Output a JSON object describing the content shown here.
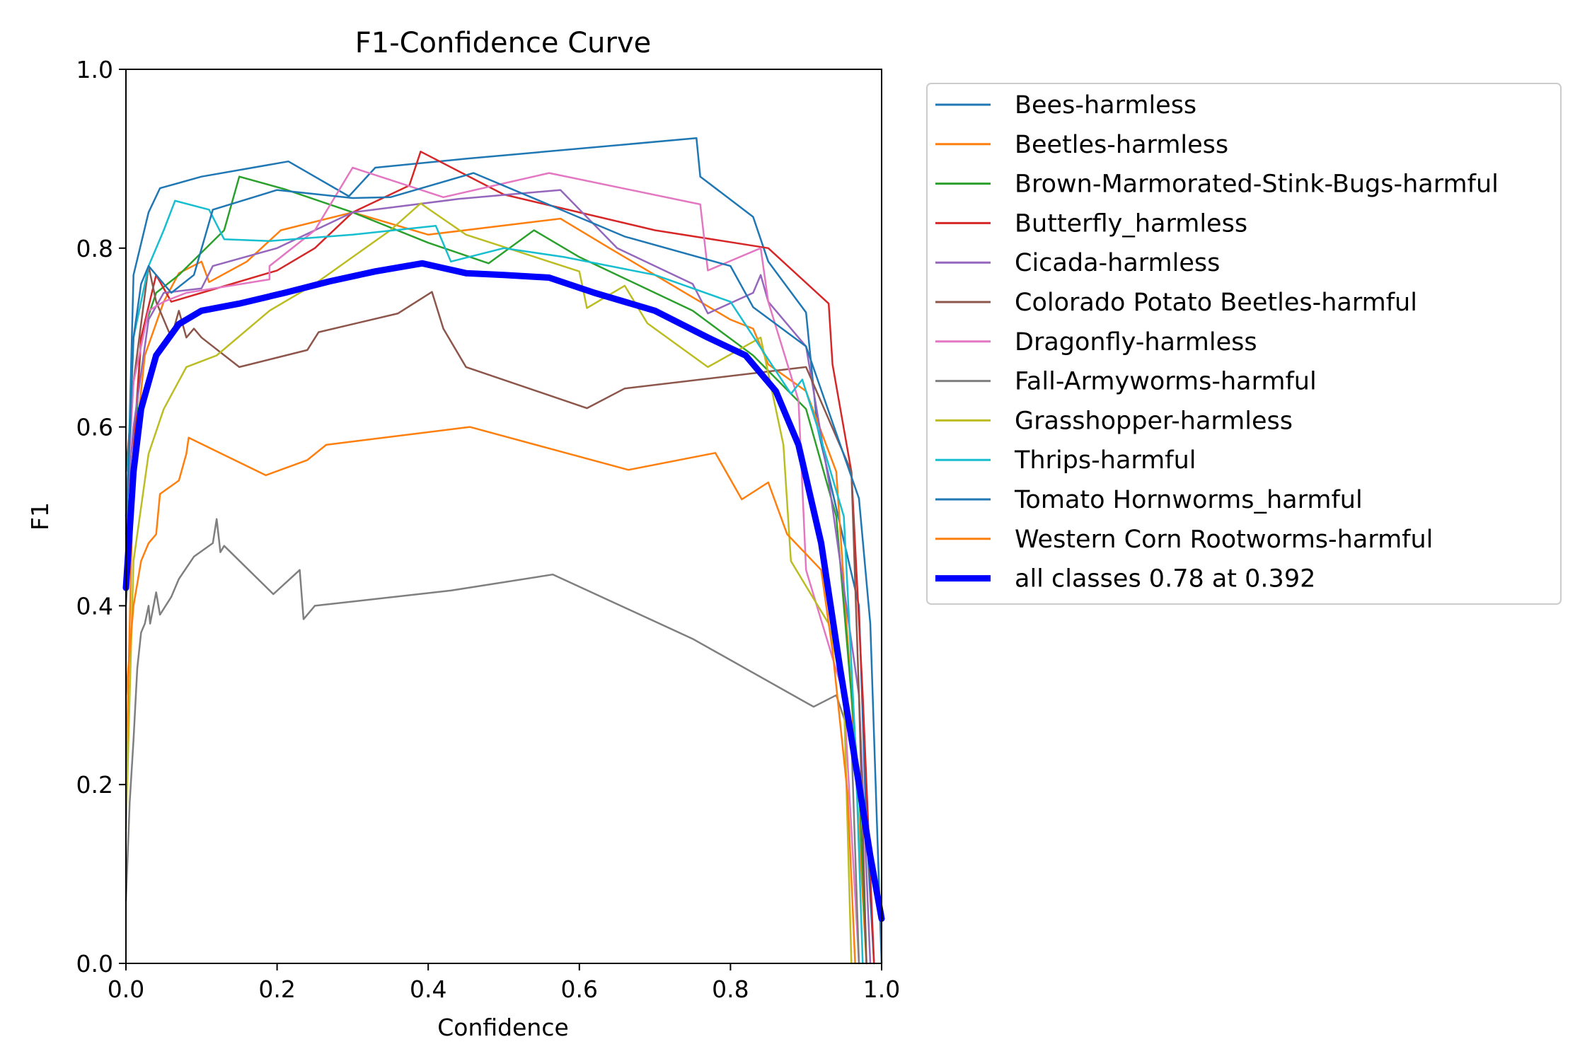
{
  "chart_data": {
    "type": "line",
    "title": "F1-Confidence Curve",
    "xlabel": "Confidence",
    "ylabel": "F1",
    "xlim": [
      0.0,
      1.0
    ],
    "ylim": [
      0.0,
      1.0
    ],
    "xticks": [
      "0.0",
      "0.2",
      "0.4",
      "0.6",
      "0.8",
      "1.0"
    ],
    "yticks": [
      "0.0",
      "0.2",
      "0.4",
      "0.6",
      "0.8",
      "1.0"
    ],
    "grid": false,
    "legend_position": "outside-right",
    "series": [
      {
        "name": "Bees-harmless",
        "color": "#1f77b4",
        "width": 2.5,
        "points": [
          [
            0.0,
            0.45
          ],
          [
            0.01,
            0.77
          ],
          [
            0.03,
            0.84
          ],
          [
            0.045,
            0.867
          ],
          [
            0.1,
            0.88
          ],
          [
            0.215,
            0.897
          ],
          [
            0.295,
            0.858
          ],
          [
            0.33,
            0.89
          ],
          [
            0.45,
            0.9
          ],
          [
            0.755,
            0.923
          ],
          [
            0.76,
            0.88
          ],
          [
            0.83,
            0.835
          ],
          [
            0.85,
            0.785
          ],
          [
            0.9,
            0.728
          ],
          [
            0.915,
            0.6
          ],
          [
            0.97,
            0.4
          ],
          [
            0.98,
            0.15
          ],
          [
            0.99,
            0.0
          ]
        ]
      },
      {
        "name": "Beetles-harmless",
        "color": "#ff7f0e",
        "width": 2.5,
        "points": [
          [
            0.0,
            0.2
          ],
          [
            0.01,
            0.56
          ],
          [
            0.025,
            0.68
          ],
          [
            0.05,
            0.74
          ],
          [
            0.07,
            0.772
          ],
          [
            0.1,
            0.785
          ],
          [
            0.11,
            0.762
          ],
          [
            0.16,
            0.785
          ],
          [
            0.205,
            0.82
          ],
          [
            0.3,
            0.84
          ],
          [
            0.4,
            0.815
          ],
          [
            0.575,
            0.833
          ],
          [
            0.64,
            0.8
          ],
          [
            0.8,
            0.72
          ],
          [
            0.83,
            0.71
          ],
          [
            0.85,
            0.67
          ],
          [
            0.9,
            0.64
          ],
          [
            0.94,
            0.55
          ],
          [
            0.96,
            0.3
          ],
          [
            0.98,
            0.0
          ]
        ]
      },
      {
        "name": "Brown-Marmorated-Stink-Bugs-harmful",
        "color": "#2ca02c",
        "width": 2.5,
        "points": [
          [
            0.0,
            0.4
          ],
          [
            0.02,
            0.7
          ],
          [
            0.04,
            0.75
          ],
          [
            0.07,
            0.77
          ],
          [
            0.13,
            0.82
          ],
          [
            0.15,
            0.88
          ],
          [
            0.21,
            0.866
          ],
          [
            0.3,
            0.84
          ],
          [
            0.4,
            0.806
          ],
          [
            0.48,
            0.783
          ],
          [
            0.54,
            0.82
          ],
          [
            0.6,
            0.79
          ],
          [
            0.75,
            0.73
          ],
          [
            0.83,
            0.68
          ],
          [
            0.9,
            0.62
          ],
          [
            0.94,
            0.5
          ],
          [
            0.97,
            0.2
          ],
          [
            0.98,
            0.0
          ]
        ]
      },
      {
        "name": "Butterfly_harmless",
        "color": "#d62728",
        "width": 2.5,
        "points": [
          [
            0.0,
            0.45
          ],
          [
            0.02,
            0.7
          ],
          [
            0.04,
            0.77
          ],
          [
            0.06,
            0.74
          ],
          [
            0.1,
            0.75
          ],
          [
            0.2,
            0.775
          ],
          [
            0.25,
            0.8
          ],
          [
            0.3,
            0.84
          ],
          [
            0.375,
            0.87
          ],
          [
            0.39,
            0.908
          ],
          [
            0.5,
            0.86
          ],
          [
            0.7,
            0.82
          ],
          [
            0.85,
            0.8
          ],
          [
            0.93,
            0.738
          ],
          [
            0.935,
            0.67
          ],
          [
            0.96,
            0.55
          ],
          [
            0.975,
            0.3
          ],
          [
            0.99,
            0.0
          ]
        ]
      },
      {
        "name": "Cicada-harmless",
        "color": "#9467bd",
        "width": 2.5,
        "points": [
          [
            0.0,
            0.5
          ],
          [
            0.01,
            0.6
          ],
          [
            0.03,
            0.72
          ],
          [
            0.05,
            0.75
          ],
          [
            0.1,
            0.755
          ],
          [
            0.115,
            0.78
          ],
          [
            0.2,
            0.8
          ],
          [
            0.3,
            0.84
          ],
          [
            0.44,
            0.855
          ],
          [
            0.575,
            0.865
          ],
          [
            0.65,
            0.8
          ],
          [
            0.75,
            0.76
          ],
          [
            0.77,
            0.727
          ],
          [
            0.83,
            0.75
          ],
          [
            0.84,
            0.77
          ],
          [
            0.85,
            0.74
          ],
          [
            0.9,
            0.69
          ],
          [
            0.93,
            0.54
          ],
          [
            0.97,
            0.3
          ],
          [
            0.985,
            0.0
          ]
        ]
      },
      {
        "name": "Colorado Potato Beetles-harmful",
        "color": "#8c564b",
        "width": 2.5,
        "points": [
          [
            0.0,
            0.55
          ],
          [
            0.01,
            0.65
          ],
          [
            0.03,
            0.78
          ],
          [
            0.04,
            0.74
          ],
          [
            0.06,
            0.7
          ],
          [
            0.07,
            0.73
          ],
          [
            0.08,
            0.7
          ],
          [
            0.09,
            0.71
          ],
          [
            0.1,
            0.7
          ],
          [
            0.15,
            0.667
          ],
          [
            0.24,
            0.686
          ],
          [
            0.255,
            0.706
          ],
          [
            0.36,
            0.727
          ],
          [
            0.405,
            0.751
          ],
          [
            0.42,
            0.71
          ],
          [
            0.45,
            0.667
          ],
          [
            0.61,
            0.621
          ],
          [
            0.66,
            0.643
          ],
          [
            0.9,
            0.667
          ],
          [
            0.96,
            0.55
          ],
          [
            0.97,
            0.3
          ],
          [
            0.98,
            0.0
          ]
        ]
      },
      {
        "name": "Dragonfly-harmless",
        "color": "#e377c2",
        "width": 2.5,
        "points": [
          [
            0.0,
            0.5
          ],
          [
            0.01,
            0.65
          ],
          [
            0.03,
            0.73
          ],
          [
            0.05,
            0.74
          ],
          [
            0.08,
            0.75
          ],
          [
            0.19,
            0.765
          ],
          [
            0.19,
            0.78
          ],
          [
            0.25,
            0.82
          ],
          [
            0.3,
            0.89
          ],
          [
            0.42,
            0.857
          ],
          [
            0.56,
            0.884
          ],
          [
            0.76,
            0.849
          ],
          [
            0.77,
            0.775
          ],
          [
            0.84,
            0.8
          ],
          [
            0.85,
            0.74
          ],
          [
            0.89,
            0.63
          ],
          [
            0.9,
            0.44
          ],
          [
            0.95,
            0.3
          ],
          [
            0.97,
            0.0
          ]
        ]
      },
      {
        "name": "Fall-Armyworms-harmful",
        "color": "#7f7f7f",
        "width": 2.5,
        "points": [
          [
            0.0,
            0.07
          ],
          [
            0.005,
            0.18
          ],
          [
            0.01,
            0.25
          ],
          [
            0.015,
            0.33
          ],
          [
            0.02,
            0.37
          ],
          [
            0.025,
            0.38
          ],
          [
            0.03,
            0.4
          ],
          [
            0.032,
            0.38
          ],
          [
            0.04,
            0.415
          ],
          [
            0.045,
            0.39
          ],
          [
            0.06,
            0.41
          ],
          [
            0.07,
            0.43
          ],
          [
            0.09,
            0.455
          ],
          [
            0.115,
            0.47
          ],
          [
            0.12,
            0.497
          ],
          [
            0.125,
            0.46
          ],
          [
            0.13,
            0.467
          ],
          [
            0.195,
            0.413
          ],
          [
            0.23,
            0.44
          ],
          [
            0.235,
            0.385
          ],
          [
            0.25,
            0.4
          ],
          [
            0.43,
            0.417
          ],
          [
            0.565,
            0.435
          ],
          [
            0.75,
            0.363
          ],
          [
            0.91,
            0.287
          ],
          [
            0.94,
            0.3
          ],
          [
            0.96,
            0.25
          ],
          [
            0.97,
            0.0
          ]
        ]
      },
      {
        "name": "Grasshopper-harmless",
        "color": "#bcbd22",
        "width": 2.5,
        "points": [
          [
            0.0,
            0.15
          ],
          [
            0.01,
            0.45
          ],
          [
            0.03,
            0.57
          ],
          [
            0.05,
            0.62
          ],
          [
            0.08,
            0.667
          ],
          [
            0.12,
            0.68
          ],
          [
            0.19,
            0.73
          ],
          [
            0.25,
            0.76
          ],
          [
            0.3,
            0.79
          ],
          [
            0.35,
            0.82
          ],
          [
            0.39,
            0.85
          ],
          [
            0.45,
            0.815
          ],
          [
            0.6,
            0.774
          ],
          [
            0.61,
            0.733
          ],
          [
            0.66,
            0.758
          ],
          [
            0.69,
            0.716
          ],
          [
            0.77,
            0.667
          ],
          [
            0.84,
            0.7
          ],
          [
            0.87,
            0.58
          ],
          [
            0.88,
            0.45
          ],
          [
            0.93,
            0.38
          ],
          [
            0.95,
            0.3
          ],
          [
            0.96,
            0.0
          ]
        ]
      },
      {
        "name": "Thrips-harmful",
        "color": "#17becf",
        "width": 2.5,
        "points": [
          [
            0.0,
            0.5
          ],
          [
            0.01,
            0.7
          ],
          [
            0.03,
            0.78
          ],
          [
            0.05,
            0.82
          ],
          [
            0.065,
            0.853
          ],
          [
            0.11,
            0.843
          ],
          [
            0.13,
            0.81
          ],
          [
            0.19,
            0.808
          ],
          [
            0.3,
            0.815
          ],
          [
            0.41,
            0.825
          ],
          [
            0.43,
            0.785
          ],
          [
            0.5,
            0.8
          ],
          [
            0.58,
            0.79
          ],
          [
            0.7,
            0.77
          ],
          [
            0.8,
            0.74
          ],
          [
            0.88,
            0.637
          ],
          [
            0.895,
            0.653
          ],
          [
            0.915,
            0.6
          ],
          [
            0.95,
            0.5
          ],
          [
            0.965,
            0.25
          ],
          [
            0.975,
            0.0
          ]
        ]
      },
      {
        "name": "Tomato Hornworms_harmful",
        "color": "#1f77b4",
        "width": 2.5,
        "points": [
          [
            0.0,
            0.48
          ],
          [
            0.01,
            0.7
          ],
          [
            0.02,
            0.76
          ],
          [
            0.03,
            0.78
          ],
          [
            0.06,
            0.75
          ],
          [
            0.09,
            0.77
          ],
          [
            0.115,
            0.843
          ],
          [
            0.2,
            0.865
          ],
          [
            0.3,
            0.856
          ],
          [
            0.35,
            0.857
          ],
          [
            0.46,
            0.884
          ],
          [
            0.66,
            0.813
          ],
          [
            0.8,
            0.78
          ],
          [
            0.83,
            0.734
          ],
          [
            0.9,
            0.69
          ],
          [
            0.97,
            0.52
          ],
          [
            0.985,
            0.38
          ],
          [
            1.0,
            0.0
          ]
        ]
      },
      {
        "name": "Western Corn Rootworms-harmful",
        "color": "#ff7f0e",
        "width": 2.5,
        "points": [
          [
            0.0,
            0.3
          ],
          [
            0.01,
            0.4
          ],
          [
            0.02,
            0.45
          ],
          [
            0.03,
            0.47
          ],
          [
            0.04,
            0.48
          ],
          [
            0.045,
            0.525
          ],
          [
            0.07,
            0.54
          ],
          [
            0.08,
            0.57
          ],
          [
            0.083,
            0.588
          ],
          [
            0.185,
            0.546
          ],
          [
            0.24,
            0.563
          ],
          [
            0.265,
            0.58
          ],
          [
            0.455,
            0.6
          ],
          [
            0.665,
            0.552
          ],
          [
            0.78,
            0.571
          ],
          [
            0.815,
            0.519
          ],
          [
            0.85,
            0.538
          ],
          [
            0.875,
            0.48
          ],
          [
            0.92,
            0.44
          ],
          [
            0.935,
            0.35
          ],
          [
            0.955,
            0.19
          ],
          [
            0.965,
            0.0
          ]
        ]
      },
      {
        "name": "all classes 0.78 at 0.392",
        "color": "#0000ff",
        "width": 9,
        "points": [
          [
            0.0,
            0.42
          ],
          [
            0.01,
            0.55
          ],
          [
            0.02,
            0.62
          ],
          [
            0.04,
            0.68
          ],
          [
            0.07,
            0.715
          ],
          [
            0.1,
            0.73
          ],
          [
            0.15,
            0.738
          ],
          [
            0.21,
            0.75
          ],
          [
            0.27,
            0.763
          ],
          [
            0.33,
            0.774
          ],
          [
            0.392,
            0.783
          ],
          [
            0.45,
            0.772
          ],
          [
            0.5,
            0.77
          ],
          [
            0.56,
            0.767
          ],
          [
            0.62,
            0.75
          ],
          [
            0.7,
            0.73
          ],
          [
            0.77,
            0.7
          ],
          [
            0.82,
            0.68
          ],
          [
            0.86,
            0.64
          ],
          [
            0.89,
            0.58
          ],
          [
            0.92,
            0.47
          ],
          [
            0.945,
            0.33
          ],
          [
            0.97,
            0.2
          ],
          [
            0.985,
            0.12
          ],
          [
            1.0,
            0.05
          ]
        ]
      }
    ]
  }
}
